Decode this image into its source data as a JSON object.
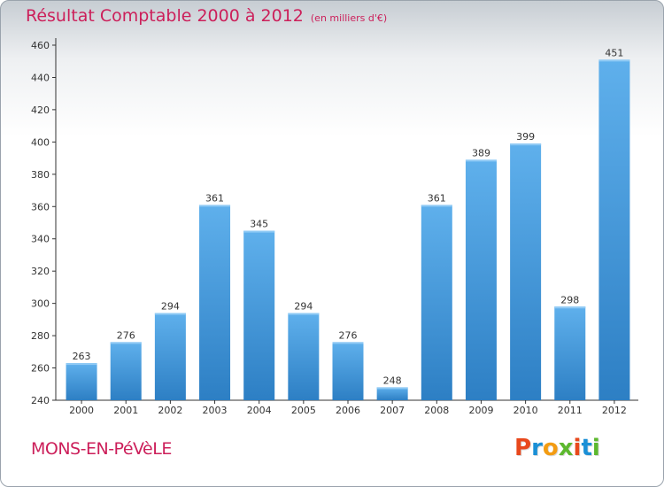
{
  "header": {
    "title": "Résultat Comptable 2000 à 2012",
    "subtitle": "(en milliers d'€)"
  },
  "footer": {
    "commune": "MONS-EN-PéVèLE",
    "logo": {
      "text": "Proxiti",
      "letter_colors": [
        "#e8481c",
        "#1a8fd6",
        "#f39c12",
        "#5cb82e",
        "#e8481c",
        "#1a8fd6",
        "#5cb82e"
      ]
    }
  },
  "colors": {
    "bar_light": "#5fb0ec",
    "bar_dark": "#2d7fc4",
    "title": "#cc1f5a"
  },
  "chart_data": {
    "type": "bar",
    "categories": [
      "2000",
      "2001",
      "2002",
      "2003",
      "2004",
      "2005",
      "2006",
      "2007",
      "2008",
      "2009",
      "2010",
      "2011",
      "2012"
    ],
    "values": [
      263,
      276,
      294,
      361,
      345,
      294,
      276,
      248,
      361,
      389,
      399,
      298,
      451
    ],
    "ylim": [
      240,
      460
    ],
    "yticks": [
      240,
      260,
      280,
      300,
      320,
      340,
      360,
      380,
      400,
      420,
      440,
      460
    ],
    "grid": false,
    "data_labels": true
  }
}
